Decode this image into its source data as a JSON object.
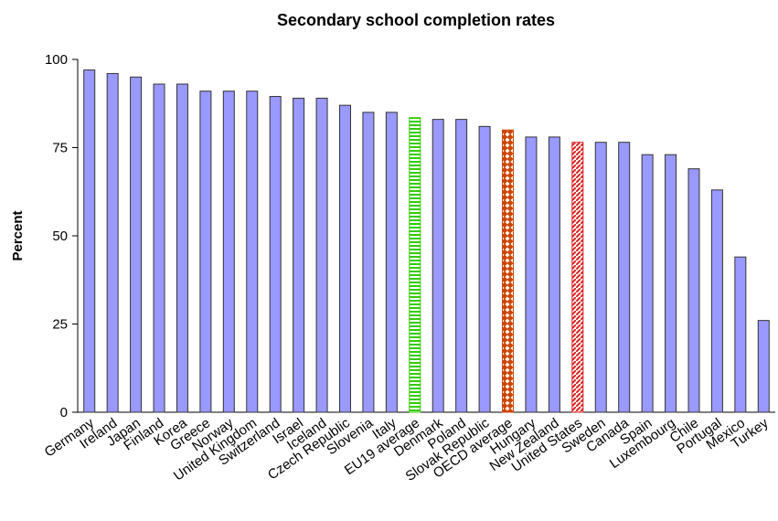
{
  "chart_data": {
    "type": "bar",
    "title": "Secondary school completion rates",
    "y_label": "Percent",
    "categories": [
      "Germany",
      "Ireland",
      "Japan",
      "Finland",
      "Korea",
      "Greece",
      "Norway",
      "United Kingdom",
      "Switzerland",
      "Israel",
      "Iceland",
      "Czech Republic",
      "Slovenia",
      "Italy",
      "EU19 average",
      "Denmark",
      "Poland",
      "Slovak Republic",
      "OECD average",
      "Hungary",
      "New Zealand",
      "United States",
      "Sweden",
      "Canada",
      "Spain",
      "Luxembourg",
      "Chile",
      "Portugal",
      "Mexico",
      "Turkey"
    ],
    "values": [
      97,
      96,
      95,
      93,
      93,
      91,
      91,
      91,
      89.5,
      89,
      89,
      87,
      85,
      85,
      83.5,
      83,
      83,
      81,
      80,
      78,
      78,
      76.5,
      76.5,
      76.5,
      73,
      73,
      69,
      63,
      44,
      26
    ],
    "color": "#9999ff",
    "patterns": [
      null,
      null,
      null,
      null,
      null,
      null,
      null,
      null,
      null,
      null,
      null,
      null,
      null,
      null,
      {
        "style": "horizontal-stripes",
        "color": "#33cc00"
      },
      null,
      null,
      null,
      {
        "style": "diamonds",
        "color": "#cc4400"
      },
      null,
      null,
      {
        "style": "diagonal-stripes",
        "color": "#dd2222"
      },
      null,
      null,
      null,
      null,
      null,
      null,
      null,
      null
    ],
    "ylim": [
      0,
      100
    ],
    "yticks": [
      0,
      25,
      50,
      75,
      100
    ],
    "grid": false
  }
}
